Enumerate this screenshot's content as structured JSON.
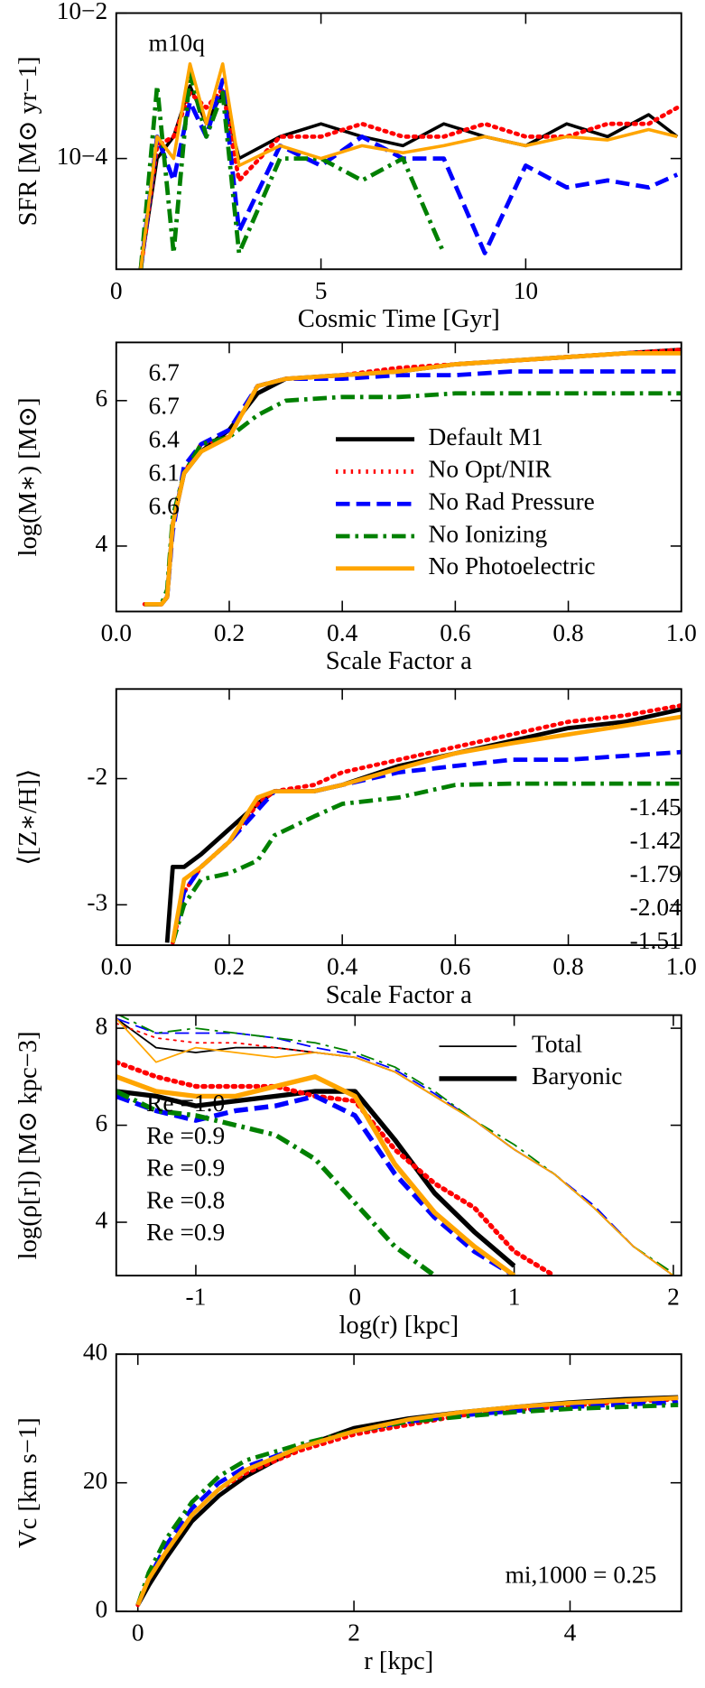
{
  "chart_data": [
    {
      "type": "line",
      "xlabel": "Cosmic Time [Gyr]",
      "ylabel": "SFR [M⊙ yr−1]",
      "ylog": true,
      "xlim": [
        0,
        13.8
      ],
      "xticks": [
        0,
        5,
        10
      ],
      "ylim": [
        3e-06,
        0.01
      ],
      "yticks": [
        {
          "value": 0.01,
          "label": "10−2"
        },
        {
          "value": 0.0001,
          "label": "10−4"
        }
      ],
      "annotations": [
        {
          "text": "m10q",
          "color": "#000000"
        }
      ],
      "x": [
        0.6,
        1.0,
        1.4,
        1.8,
        2.2,
        2.6,
        3.0,
        4,
        5,
        6,
        7,
        8,
        9,
        10,
        11,
        12,
        13,
        13.7
      ],
      "series": [
        {
          "color": "#000000",
          "style": "solid",
          "width": 3,
          "values": [
            3e-06,
            0.0001,
            0.0002,
            0.001,
            0.0003,
            0.0008,
            0.0001,
            0.0002,
            0.0003,
            0.0002,
            0.00015,
            0.0003,
            0.0002,
            0.00015,
            0.0003,
            0.0002,
            0.0004,
            0.0002
          ]
        },
        {
          "color": "#ff0000",
          "style": "dotted",
          "width": 4,
          "values": [
            3e-06,
            0.00015,
            0.0002,
            0.0008,
            0.0005,
            0.0009,
            5e-05,
            0.0002,
            0.0002,
            0.0003,
            0.0002,
            0.0002,
            0.0003,
            0.0002,
            0.0002,
            0.0003,
            0.0003,
            0.0005
          ]
        },
        {
          "color": "#0000ff",
          "style": "dashed",
          "width": 4,
          "values": [
            3e-06,
            0.0002,
            5e-05,
            0.0006,
            0.0002,
            0.0012,
            1e-05,
            0.00015,
            8e-05,
            0.0002,
            0.0001,
            0.0001,
            5e-06,
            8e-05,
            4e-05,
            5e-05,
            4e-05,
            6e-05
          ]
        },
        {
          "color": "#008000",
          "style": "dashdot",
          "width": 4,
          "values": [
            3e-06,
            0.001,
            5e-06,
            0.0015,
            0.0002,
            0.0008,
            5e-06,
            0.0001,
            0.0001,
            5e-05,
            0.0001,
            5e-06,
            null,
            null,
            null,
            null,
            null,
            null
          ]
        },
        {
          "color": "#ffa500",
          "style": "solid",
          "width": 3,
          "values": [
            3e-06,
            0.0002,
            0.0001,
            0.002,
            0.0003,
            0.002,
            8e-05,
            0.00015,
            0.0001,
            0.00015,
            0.00012,
            0.00015,
            0.0002,
            0.00015,
            0.0002,
            0.00018,
            0.00025,
            0.0002
          ]
        }
      ]
    },
    {
      "type": "line",
      "xlabel": "Scale Factor a",
      "ylabel": "log(M∗) [M⊙]",
      "xlim": [
        0,
        1
      ],
      "xticks": [
        {
          "value": 0,
          "label": "0.0"
        },
        0.2,
        0.4,
        0.6,
        0.8,
        {
          "value": 1,
          "label": "1.0"
        }
      ],
      "ylim": [
        3.1,
        6.8
      ],
      "yticks": [
        4,
        6
      ],
      "legend": "lower right",
      "annotations": [
        {
          "text": "6.7",
          "color": "#000000"
        },
        {
          "text": "6.7",
          "color": "#ff0000"
        },
        {
          "text": "6.4",
          "color": "#0000ff"
        },
        {
          "text": "6.1",
          "color": "#008000"
        },
        {
          "text": "6.6",
          "color": "#ffa500"
        }
      ],
      "x": [
        0.05,
        0.08,
        0.09,
        0.1,
        0.12,
        0.15,
        0.2,
        0.25,
        0.3,
        0.4,
        0.5,
        0.6,
        0.7,
        0.8,
        0.9,
        1.0
      ],
      "series": [
        {
          "name": "Default M1",
          "color": "#000000",
          "style": "solid",
          "width": 4,
          "values": [
            3.2,
            3.2,
            3.3,
            4.3,
            5.0,
            5.3,
            5.6,
            6.1,
            6.3,
            6.35,
            6.4,
            6.5,
            6.55,
            6.6,
            6.65,
            6.7
          ]
        },
        {
          "name": "No Opt/NIR",
          "color": "#ff0000",
          "style": "dotted",
          "width": 4,
          "values": [
            3.2,
            3.2,
            3.3,
            4.3,
            5.0,
            5.4,
            5.5,
            6.2,
            6.3,
            6.35,
            6.45,
            6.5,
            6.55,
            6.6,
            6.65,
            6.7
          ]
        },
        {
          "name": "No Rad Pressure",
          "color": "#0000ff",
          "style": "dashed",
          "width": 4,
          "values": [
            3.2,
            3.2,
            3.3,
            4.2,
            5.1,
            5.4,
            5.6,
            6.2,
            6.3,
            6.3,
            6.35,
            6.35,
            6.4,
            6.4,
            6.4,
            6.4
          ]
        },
        {
          "name": "No Ionizing",
          "color": "#008000",
          "style": "dashdot",
          "width": 4,
          "values": [
            3.2,
            3.2,
            3.4,
            4.4,
            5.0,
            5.4,
            5.5,
            5.8,
            6.0,
            6.05,
            6.05,
            6.1,
            6.1,
            6.1,
            6.1,
            6.1
          ]
        },
        {
          "name": "No Photoelectric",
          "color": "#ffa500",
          "style": "solid",
          "width": 4,
          "values": [
            3.2,
            3.2,
            3.3,
            4.3,
            5.0,
            5.3,
            5.5,
            6.2,
            6.3,
            6.35,
            6.4,
            6.5,
            6.55,
            6.6,
            6.65,
            6.65
          ]
        }
      ]
    },
    {
      "type": "line",
      "xlabel": "Scale Factor a",
      "ylabel": "⟨[Z∗/H]⟩",
      "xlim": [
        0,
        1
      ],
      "xticks": [
        {
          "value": 0,
          "label": "0.0"
        },
        0.2,
        0.4,
        0.6,
        0.8,
        {
          "value": 1,
          "label": "1.0"
        }
      ],
      "ylim": [
        -3.32,
        -1.29
      ],
      "yticks": [
        -2,
        -3
      ],
      "annotations": [
        {
          "text": "-1.45",
          "color": "#000000"
        },
        {
          "text": "-1.42",
          "color": "#ff0000"
        },
        {
          "text": "-1.79",
          "color": "#0000ff"
        },
        {
          "text": "-2.04",
          "color": "#008000"
        },
        {
          "text": "-1.51",
          "color": "#ffa500"
        }
      ],
      "x": [
        0.09,
        0.1,
        0.12,
        0.15,
        0.2,
        0.25,
        0.28,
        0.35,
        0.4,
        0.5,
        0.6,
        0.7,
        0.8,
        0.9,
        1.0
      ],
      "series": [
        {
          "color": "#000000",
          "style": "solid",
          "width": 4,
          "values": [
            -3.3,
            -2.7,
            -2.7,
            -2.6,
            -2.4,
            -2.2,
            -2.1,
            -2.1,
            -2.05,
            -1.9,
            -1.8,
            -1.7,
            -1.6,
            -1.55,
            -1.45
          ]
        },
        {
          "color": "#ff0000",
          "style": "dotted",
          "width": 4,
          "values": [
            null,
            -3.3,
            -2.9,
            -2.7,
            -2.5,
            -2.2,
            -2.1,
            -2.05,
            -1.95,
            -1.85,
            -1.75,
            -1.65,
            -1.55,
            -1.5,
            -1.42
          ]
        },
        {
          "color": "#0000ff",
          "style": "dashed",
          "width": 4,
          "values": [
            null,
            -3.3,
            -2.9,
            -2.7,
            -2.5,
            -2.25,
            -2.1,
            -2.1,
            -2.05,
            -1.95,
            -1.9,
            -1.85,
            -1.85,
            -1.82,
            -1.79
          ]
        },
        {
          "color": "#008000",
          "style": "dashdot",
          "width": 4,
          "values": [
            null,
            -3.3,
            -3.0,
            -2.8,
            -2.75,
            -2.65,
            -2.45,
            -2.3,
            -2.2,
            -2.15,
            -2.05,
            -2.04,
            -2.04,
            -2.04,
            -2.04
          ]
        },
        {
          "color": "#ffa500",
          "style": "solid",
          "width": 4,
          "values": [
            null,
            -3.3,
            -2.8,
            -2.7,
            -2.5,
            -2.15,
            -2.1,
            -2.1,
            -2.05,
            -1.92,
            -1.8,
            -1.72,
            -1.65,
            -1.58,
            -1.51
          ]
        }
      ]
    },
    {
      "type": "line",
      "xlabel": "log(r) [kpc]",
      "ylabel": "log(ρ[r])  [M⊙ kpc−3]",
      "xlim": [
        -1.5,
        2.05
      ],
      "xticks": [
        -1,
        0,
        1,
        2
      ],
      "ylim": [
        2.9,
        8.27
      ],
      "yticks": [
        4,
        6,
        8
      ],
      "legend_entries": [
        {
          "name": "Total",
          "width": 1.5
        },
        {
          "name": "Baryonic",
          "width": 4.5
        }
      ],
      "annotations": [
        {
          "text": "Re =1.0",
          "color": "#000000"
        },
        {
          "text": "Re =0.9",
          "color": "#ff0000"
        },
        {
          "text": "Re =0.9",
          "color": "#0000ff"
        },
        {
          "text": "Re =0.8",
          "color": "#008000"
        },
        {
          "text": "Re =0.9",
          "color": "#ffa500"
        }
      ],
      "x": [
        -1.5,
        -1.25,
        -1,
        -0.75,
        -0.5,
        -0.25,
        0,
        0.25,
        0.5,
        0.75,
        1,
        1.25,
        1.5,
        1.75,
        2.0
      ],
      "series": [
        {
          "color": "#000000",
          "style": "solid",
          "width": 1.5,
          "values": [
            8.2,
            7.6,
            7.5,
            7.6,
            7.6,
            7.5,
            7.4,
            7.1,
            6.6,
            6.1,
            5.5,
            5.0,
            4.3,
            3.5,
            2.9
          ]
        },
        {
          "color": "#ff0000",
          "style": "dotted",
          "width": 1.5,
          "values": [
            8.1,
            7.8,
            7.7,
            7.7,
            7.6,
            7.5,
            7.4,
            7.1,
            6.6,
            6.1,
            5.5,
            5.0,
            4.3,
            3.5,
            2.9
          ]
        },
        {
          "color": "#0000ff",
          "style": "dashed",
          "width": 1.5,
          "values": [
            8.2,
            7.9,
            7.9,
            7.9,
            7.8,
            7.6,
            7.45,
            7.15,
            6.65,
            6.1,
            5.5,
            5.0,
            4.35,
            3.5,
            2.9
          ]
        },
        {
          "color": "#008000",
          "style": "dashdot",
          "width": 1.5,
          "values": [
            8.3,
            7.9,
            8.0,
            7.9,
            7.8,
            7.7,
            7.5,
            7.2,
            6.7,
            6.1,
            5.6,
            5.0,
            4.3,
            3.5,
            2.95
          ]
        },
        {
          "color": "#ffa500",
          "style": "solid",
          "width": 1.5,
          "values": [
            8.2,
            7.3,
            7.6,
            7.5,
            7.4,
            7.5,
            7.4,
            7.1,
            6.6,
            6.1,
            5.5,
            5.0,
            4.3,
            3.5,
            2.9
          ]
        },
        {
          "color": "#000000",
          "style": "solid",
          "width": 4.5,
          "values": [
            6.7,
            6.6,
            6.4,
            6.5,
            6.6,
            6.7,
            6.7,
            5.7,
            4.6,
            3.8,
            3.1,
            null,
            null,
            null,
            null
          ]
        },
        {
          "color": "#ff0000",
          "style": "dotted",
          "width": 4.5,
          "values": [
            7.3,
            7.0,
            6.8,
            6.8,
            6.8,
            6.6,
            6.5,
            5.5,
            4.8,
            4.3,
            3.4,
            2.9,
            null,
            null,
            null
          ]
        },
        {
          "color": "#0000ff",
          "style": "dashed",
          "width": 4.5,
          "values": [
            6.6,
            6.3,
            6.1,
            6.3,
            6.4,
            6.6,
            6.2,
            5.0,
            4.1,
            3.4,
            2.9,
            null,
            null,
            null,
            null
          ]
        },
        {
          "color": "#008000",
          "style": "dashdot",
          "width": 4.5,
          "values": [
            6.7,
            6.3,
            6.2,
            6.0,
            5.8,
            5.3,
            4.4,
            3.5,
            2.9,
            null,
            null,
            null,
            null,
            null,
            null
          ]
        },
        {
          "color": "#ffa500",
          "style": "solid",
          "width": 4.5,
          "values": [
            7.0,
            6.7,
            6.6,
            6.6,
            6.8,
            7.0,
            6.6,
            5.2,
            4.2,
            3.5,
            2.9,
            null,
            null,
            null,
            null
          ]
        }
      ]
    },
    {
      "type": "line",
      "xlabel": "r [kpc]",
      "ylabel": "Vc [km s−1]",
      "xlim": [
        -0.2,
        5.03
      ],
      "xticks": [
        0,
        2,
        4
      ],
      "ylim": [
        0,
        40
      ],
      "yticks": [
        0,
        20,
        40
      ],
      "annotations": [
        {
          "text": "mi,1000 = 0.25",
          "color": "#000000"
        }
      ],
      "x": [
        0,
        0.1,
        0.25,
        0.5,
        0.75,
        1.0,
        1.5,
        2.0,
        2.5,
        3.0,
        3.5,
        4.0,
        4.5,
        5.0
      ],
      "series": [
        {
          "color": "#000000",
          "style": "solid",
          "width": 4,
          "values": [
            1,
            4,
            8,
            14,
            18,
            21,
            25.5,
            28.5,
            30,
            31,
            31.8,
            32.5,
            33,
            33.3
          ]
        },
        {
          "color": "#ff0000",
          "style": "dotted",
          "width": 4,
          "values": [
            1,
            5,
            9,
            15,
            19,
            21.5,
            25,
            27.5,
            29,
            30.5,
            31.3,
            32,
            32.6,
            33
          ]
        },
        {
          "color": "#0000ff",
          "style": "dashed",
          "width": 4,
          "values": [
            1,
            5,
            10,
            16,
            20,
            22.5,
            25.5,
            28,
            29.5,
            30.5,
            31.2,
            31.8,
            32.2,
            32.5
          ]
        },
        {
          "color": "#008000",
          "style": "dashdot",
          "width": 4,
          "values": [
            1,
            6,
            11,
            17,
            21,
            23.5,
            26,
            28,
            29.5,
            30.3,
            31,
            31.5,
            31.8,
            32.1
          ]
        },
        {
          "color": "#ffa500",
          "style": "solid",
          "width": 4,
          "values": [
            1,
            5,
            9,
            15,
            19,
            22,
            25.5,
            28,
            29.8,
            31,
            31.8,
            32.4,
            32.8,
            33.2
          ]
        }
      ]
    }
  ]
}
